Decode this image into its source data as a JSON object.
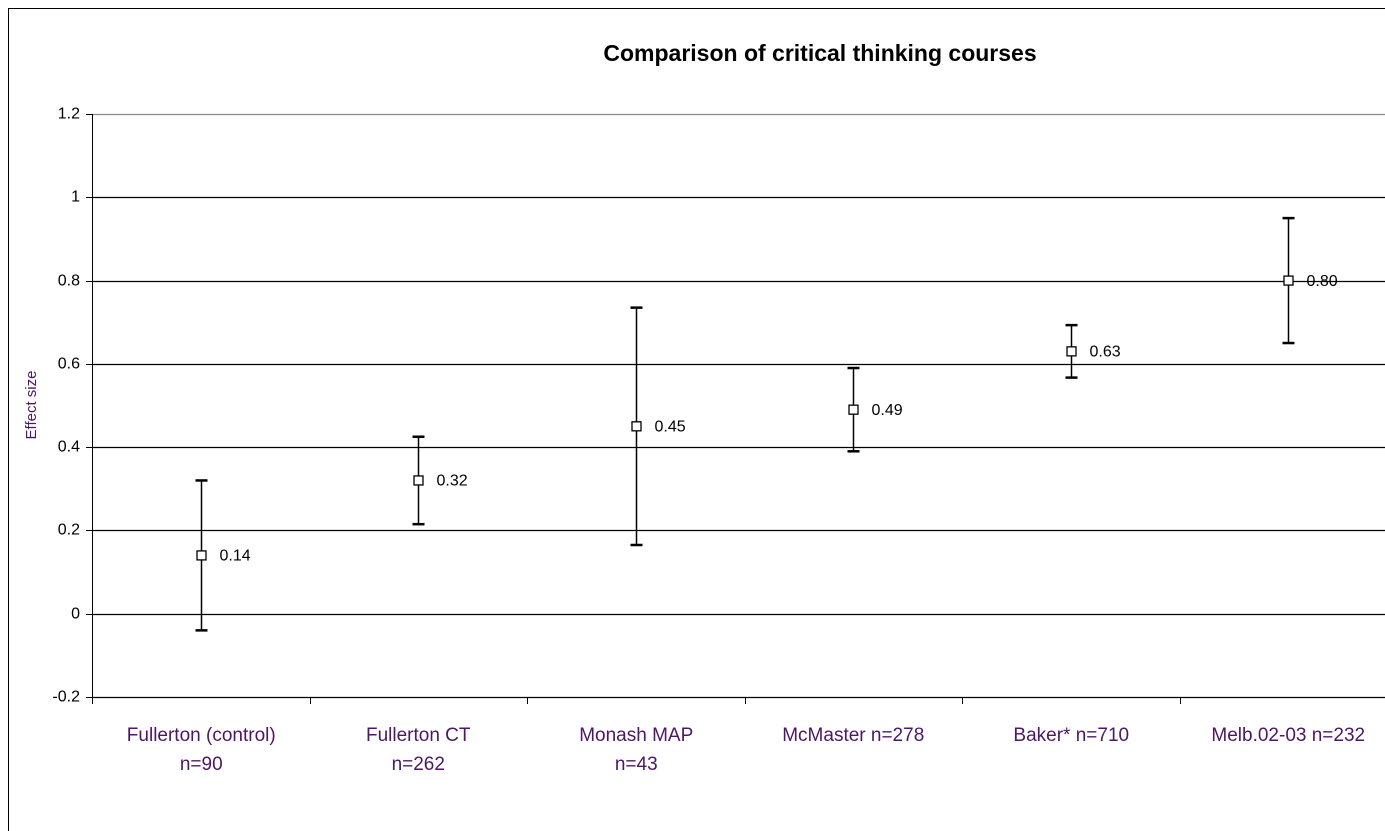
{
  "chart_data": {
    "type": "errorbar",
    "title": "Comparison of critical thinking courses",
    "y_label": "Effect size",
    "categories": [
      "Fullerton (control)\nn=90",
      "Fullerton CT\nn=262",
      "Monash MAP\nn=43",
      "McMaster n=278",
      "Baker* n=710",
      "Melb.02-03 n=232"
    ],
    "values": [
      0.14,
      0.32,
      0.45,
      0.49,
      0.63,
      0.8
    ],
    "value_labels": [
      "0.14",
      "0.32",
      "0.45",
      "0.49",
      "0.63",
      "0.80"
    ],
    "errors": [
      0.18,
      0.105,
      0.285,
      0.1,
      0.063,
      0.15
    ],
    "color": "#000000",
    "ylim": [
      -0.2,
      1.2
    ],
    "yticks": [
      -0.2,
      0,
      0.2,
      0.4,
      0.6,
      0.8,
      1,
      1.2
    ],
    "grid": true
  }
}
